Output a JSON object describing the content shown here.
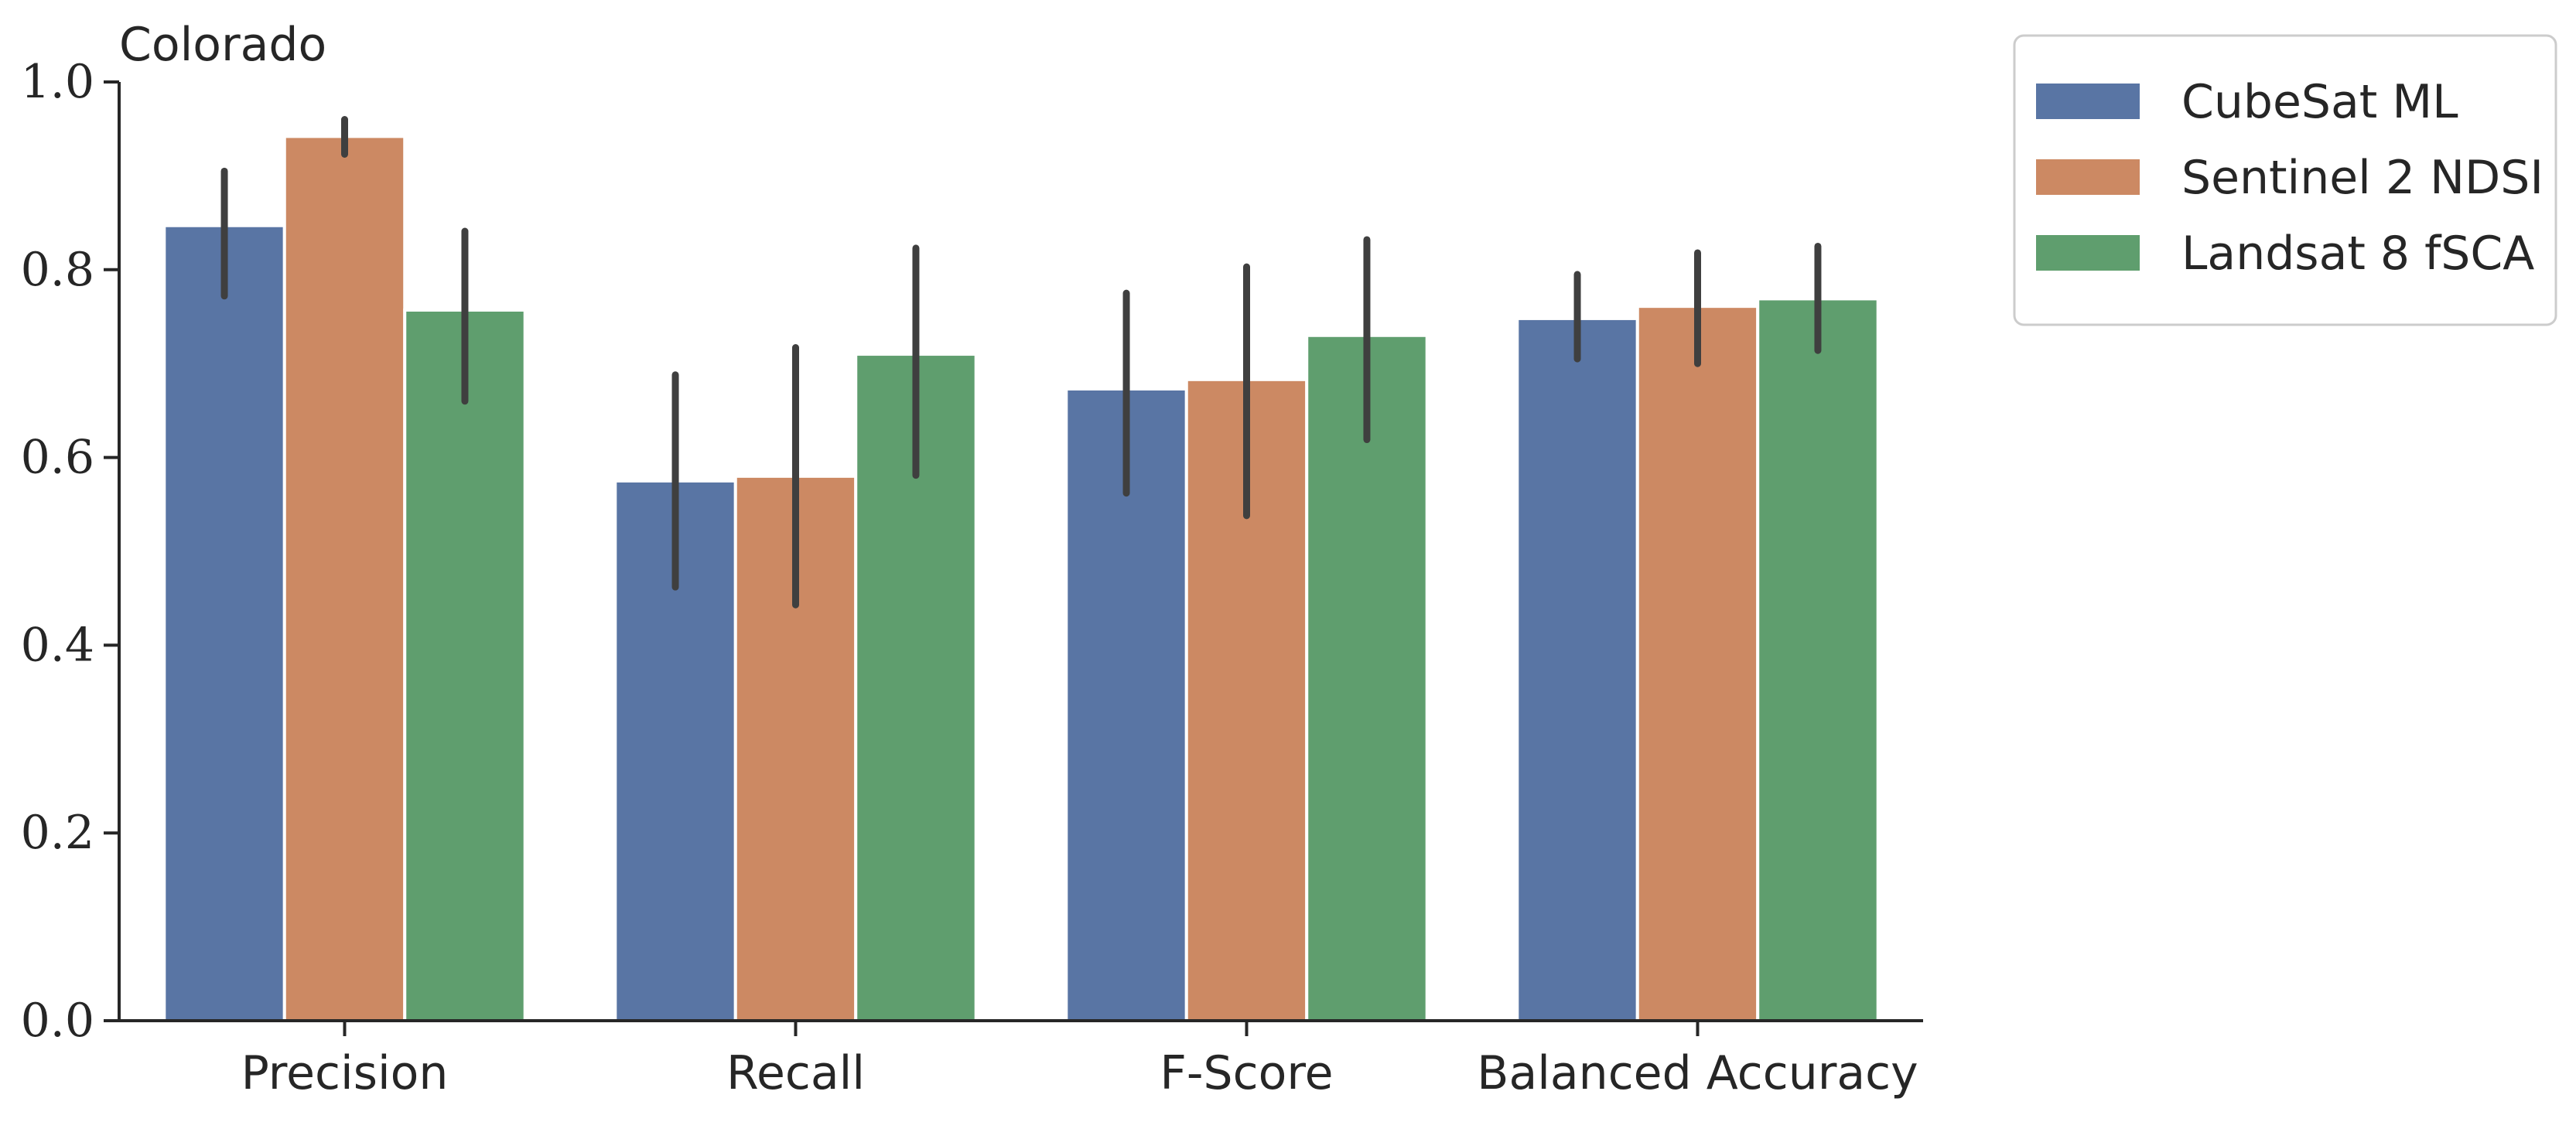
{
  "chart_data": {
    "type": "bar",
    "title": "Colorado",
    "xlabel": "",
    "ylabel": "",
    "ylim": [
      0.0,
      1.0
    ],
    "yticks": [
      "0.0",
      "0.2",
      "0.4",
      "0.6",
      "0.8",
      "1.0"
    ],
    "categories": [
      "Precision",
      "Recall",
      "F-Score",
      "Balanced Accuracy"
    ],
    "series": [
      {
        "name": "CubeSat ML",
        "color": "#5975a4",
        "values": [
          0.847,
          0.575,
          0.673,
          0.748
        ],
        "error_low": [
          0.772,
          0.462,
          0.562,
          0.705
        ],
        "error_high": [
          0.905,
          0.688,
          0.775,
          0.795
        ]
      },
      {
        "name": "Sentinel 2 NDSI",
        "color": "#cc8963",
        "values": [
          0.942,
          0.58,
          0.683,
          0.761
        ],
        "error_low": [
          0.923,
          0.443,
          0.538,
          0.7
        ],
        "error_high": [
          0.96,
          0.717,
          0.803,
          0.818
        ]
      },
      {
        "name": "Landsat 8 fSCA",
        "color": "#5f9e6e",
        "values": [
          0.757,
          0.71,
          0.73,
          0.769
        ],
        "error_low": [
          0.66,
          0.581,
          0.619,
          0.714
        ],
        "error_high": [
          0.841,
          0.823,
          0.832,
          0.825
        ]
      }
    ],
    "error_bar_color": "#3f3f3f",
    "grid": false,
    "legend_position": "outside-top-right"
  }
}
